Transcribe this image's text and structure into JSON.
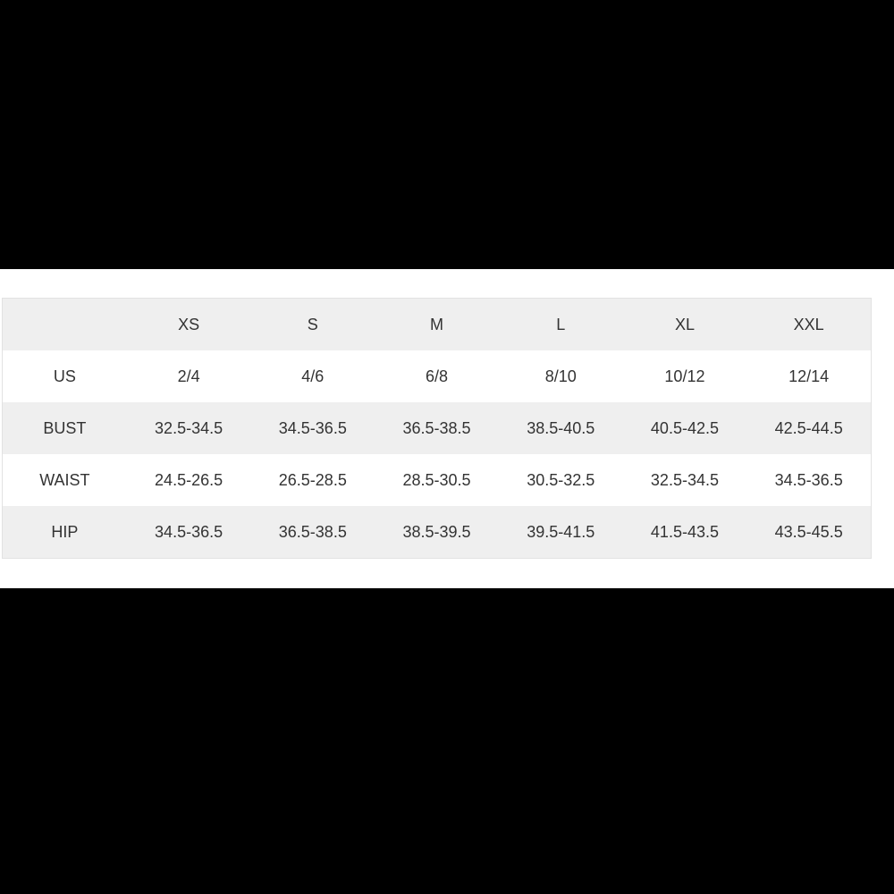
{
  "table": {
    "headers": [
      "",
      "XS",
      "S",
      "M",
      "L",
      "XL",
      "XXL"
    ],
    "rows": [
      {
        "label": "US",
        "values": [
          "2/4",
          "4/6",
          "6/8",
          "8/10",
          "10/12",
          "12/14"
        ]
      },
      {
        "label": "BUST",
        "values": [
          "32.5-34.5",
          "34.5-36.5",
          "36.5-38.5",
          "38.5-40.5",
          "40.5-42.5",
          "42.5-44.5"
        ]
      },
      {
        "label": "WAIST",
        "values": [
          "24.5-26.5",
          "26.5-28.5",
          "28.5-30.5",
          "30.5-32.5",
          "32.5-34.5",
          "34.5-36.5"
        ]
      },
      {
        "label": "HIP",
        "values": [
          "34.5-36.5",
          "36.5-38.5",
          "38.5-39.5",
          "39.5-41.5",
          "41.5-43.5",
          "43.5-45.5"
        ]
      }
    ]
  }
}
